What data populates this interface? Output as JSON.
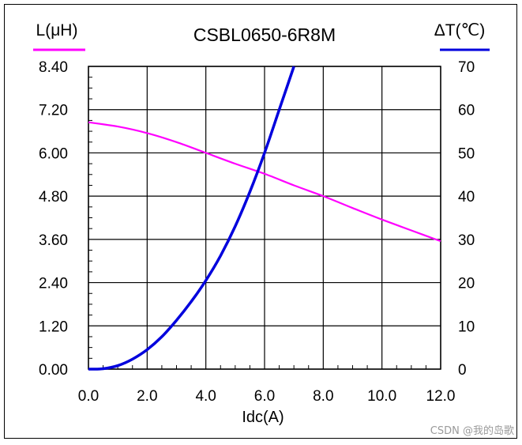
{
  "chart_data": {
    "type": "line",
    "title": "CSBL0650-6R8M",
    "xlabel": "Idc(A)",
    "ylabel_left": "L(μH)",
    "ylabel_right": "ΔT(℃)",
    "xlim": [
      0,
      12
    ],
    "ylim_left": [
      0,
      8.4
    ],
    "ylim_right": [
      0,
      70
    ],
    "x_ticks": [
      "0.0",
      "2.0",
      "4.0",
      "6.0",
      "8.0",
      "10.0",
      "12.0"
    ],
    "y_left_ticks": [
      "0.00",
      "1.20",
      "2.40",
      "3.60",
      "4.80",
      "6.00",
      "7.20",
      "8.40"
    ],
    "y_right_ticks": [
      "0",
      "10",
      "20",
      "30",
      "40",
      "50",
      "60",
      "70"
    ],
    "grid": true,
    "series": [
      {
        "name": "L(μH)",
        "axis": "left",
        "color": "#ff00ff",
        "x": [
          0,
          1,
          2,
          3,
          4,
          5,
          6,
          7,
          8,
          9,
          10,
          11,
          12
        ],
        "values": [
          6.85,
          6.73,
          6.55,
          6.3,
          6.0,
          5.7,
          5.42,
          5.1,
          4.8,
          4.47,
          4.15,
          3.85,
          3.55
        ]
      },
      {
        "name": "ΔT(℃)",
        "axis": "right",
        "color": "#0000dd",
        "x": [
          0,
          0.5,
          1,
          1.5,
          2,
          2.5,
          3,
          3.5,
          4,
          4.5,
          5,
          5.5,
          6,
          6.5,
          7
        ],
        "values": [
          0,
          0.1,
          0.8,
          2.3,
          4.5,
          7.5,
          11.3,
          15.6,
          20.5,
          26.2,
          33,
          41,
          50,
          60,
          70
        ]
      }
    ]
  },
  "watermark": "CSDN @我的岛歌"
}
